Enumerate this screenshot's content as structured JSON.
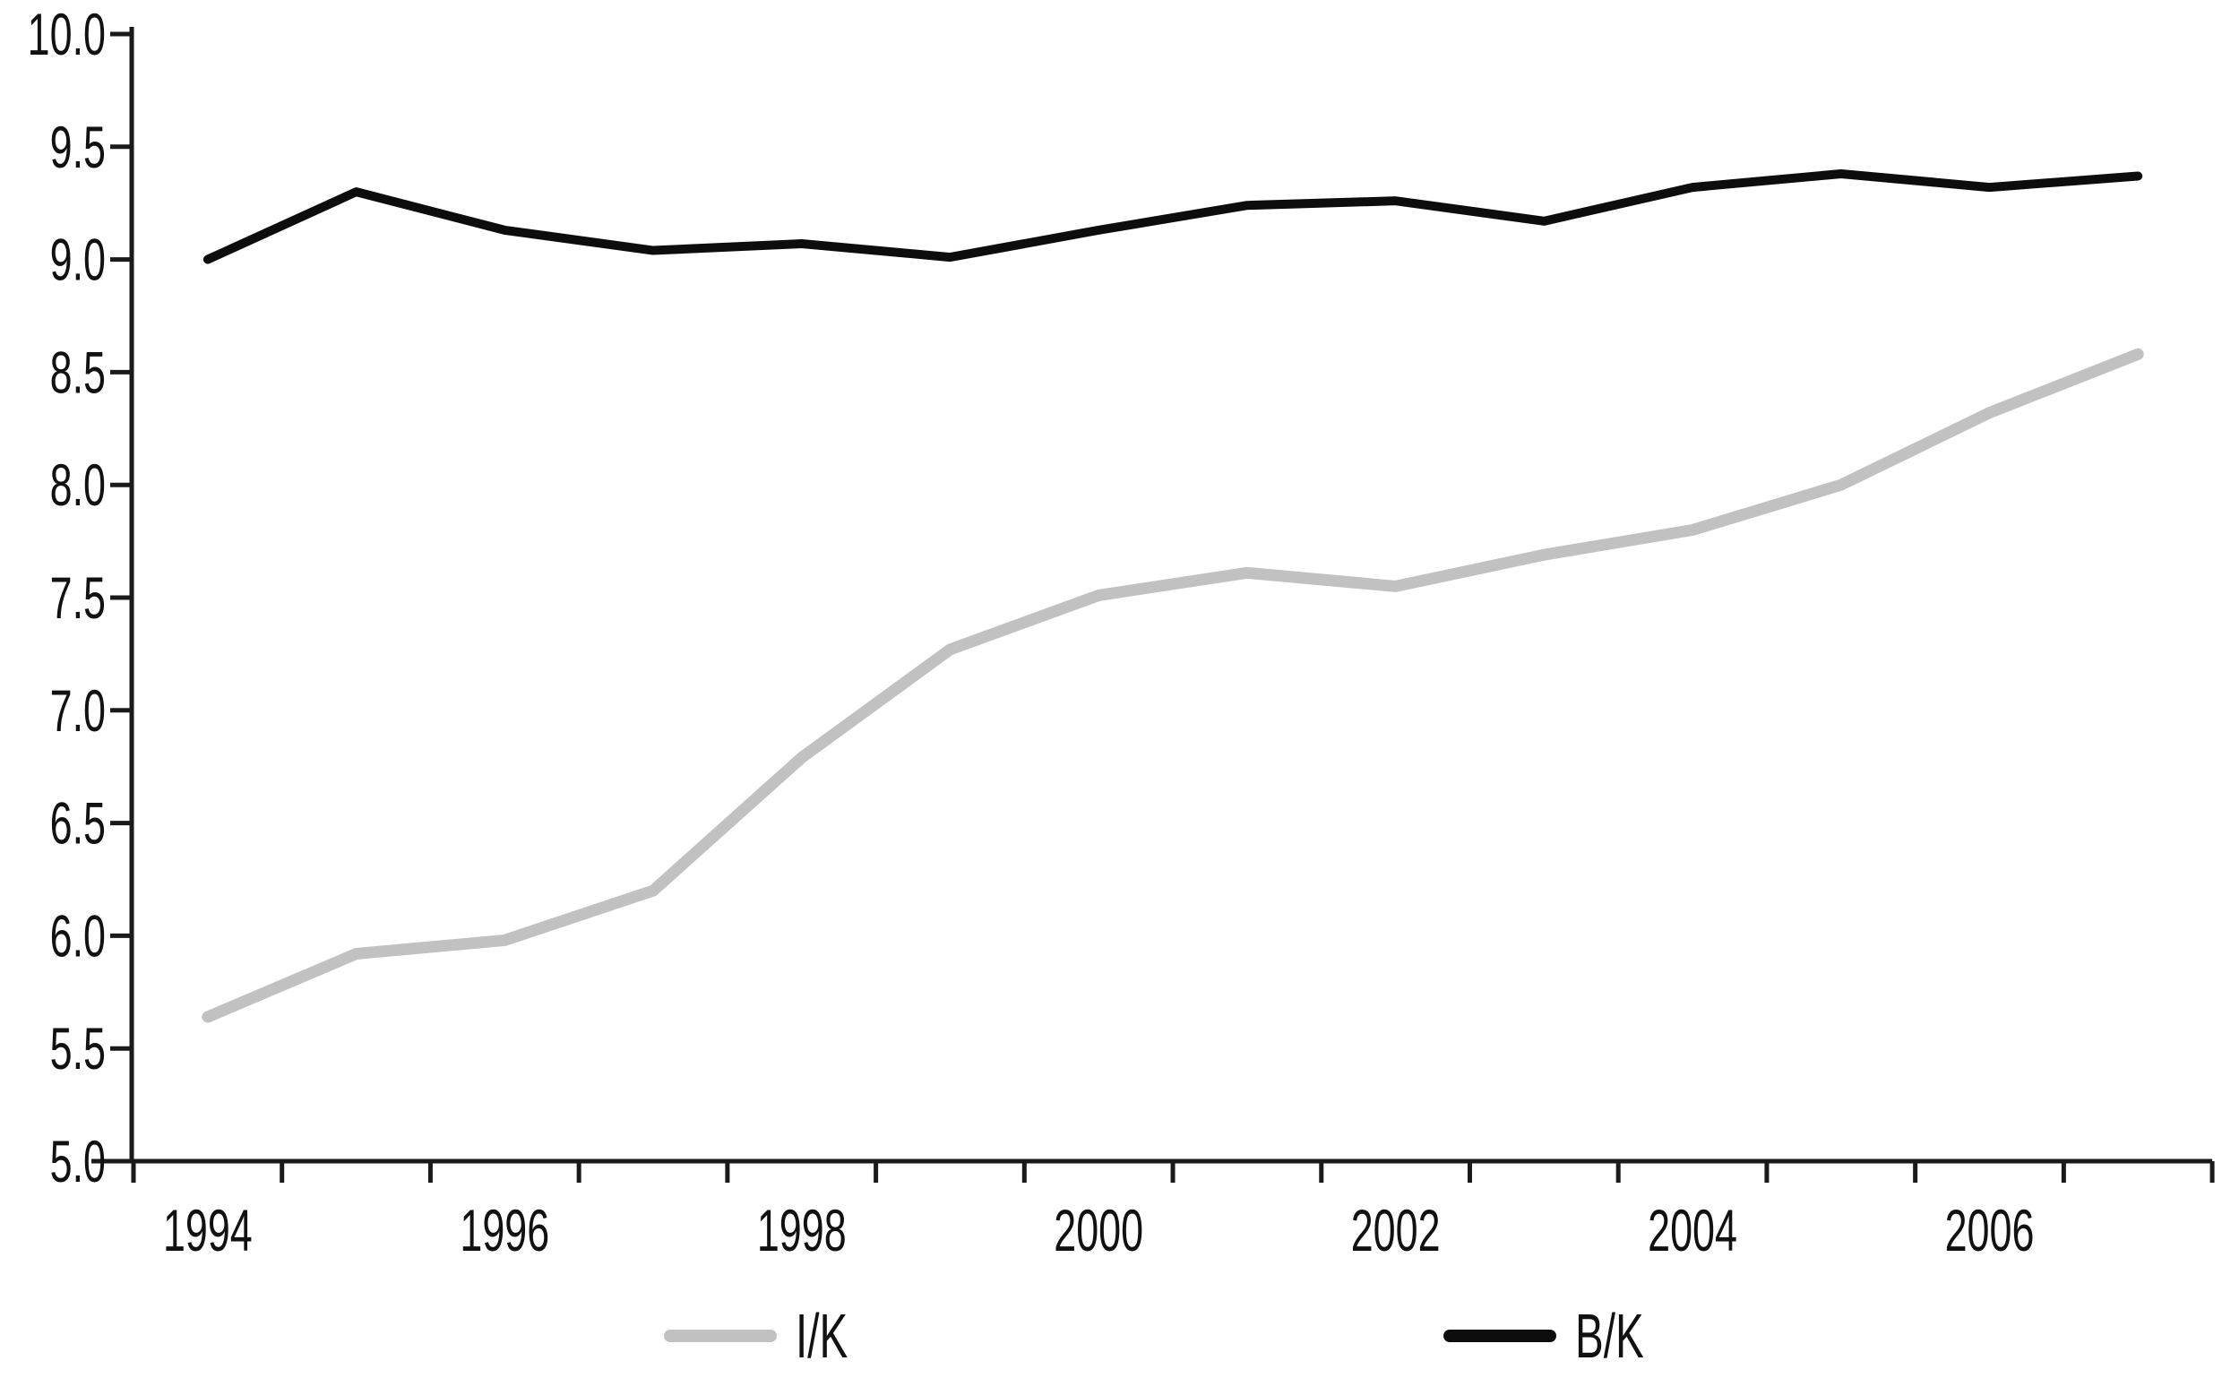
{
  "chart_data": {
    "type": "line",
    "x": [
      1994,
      1995,
      1996,
      1997,
      1998,
      1999,
      2000,
      2001,
      2002,
      2003,
      2004,
      2005,
      2006,
      2007
    ],
    "series": [
      {
        "name": "I/K",
        "color": "#c1c1c1",
        "values": [
          5.64,
          5.92,
          5.98,
          6.2,
          6.79,
          7.27,
          7.51,
          7.61,
          7.55,
          7.69,
          7.8,
          8.0,
          8.32,
          8.58
        ]
      },
      {
        "name": "B/K",
        "color": "#0d0d0d",
        "values": [
          9.0,
          9.3,
          9.13,
          9.04,
          9.07,
          9.01,
          9.13,
          9.24,
          9.26,
          9.17,
          9.32,
          9.38,
          9.32,
          9.37
        ]
      }
    ],
    "title": "",
    "xlabel": "",
    "ylabel": "",
    "ylim": [
      5.0,
      10.0
    ],
    "ytick_step": 0.5,
    "ytick_labels": [
      "5.0",
      "5.5",
      "6.0",
      "6.5",
      "7.0",
      "7.5",
      "8.0",
      "8.5",
      "9.0",
      "9.5",
      "10.0"
    ],
    "xtick_labeled_years": [
      1994,
      1996,
      1998,
      2000,
      2002,
      2004,
      2006
    ],
    "grid": false,
    "legend_position": "bottom"
  },
  "legend": {
    "items": [
      {
        "label": "I/K",
        "color": "#c1c1c1"
      },
      {
        "label": "B/K",
        "color": "#0d0d0d"
      }
    ]
  },
  "axis_color": "#1a1a1a"
}
